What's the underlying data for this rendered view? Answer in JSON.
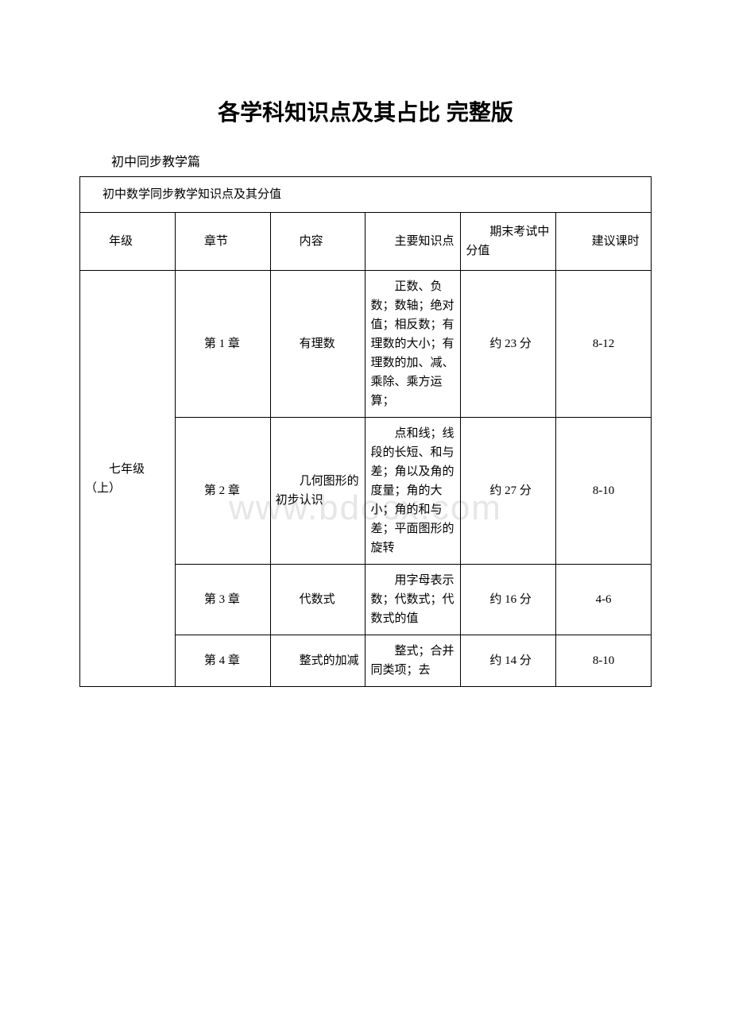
{
  "title": "各学科知识点及其占比 完整版",
  "section_label": "初中同步教学篇",
  "table_caption": "初中数学同步教学知识点及其分值",
  "watermark": "www.bdocx.com",
  "columns": {
    "grade": "年级",
    "chapter": "章节",
    "content": "内容",
    "points": "主要知识点",
    "score": "期末考试中分值",
    "hours": "建议课时"
  },
  "grade_label": "七年级（上）",
  "rows": [
    {
      "chapter": "第 1 章",
      "content": "有理数",
      "points": "正数、负数；数轴；绝对值；相反数；有理数的大小；有理数的加、减、乘除、乘方运算；",
      "score": "约 23 分",
      "hours": "8-12"
    },
    {
      "chapter": "第 2 章",
      "content": "几何图形的初步认识",
      "points": "点和线；线段的长短、和与差；角以及角的度量；角的大小；角的和与差；平面图形的旋转",
      "score": "约 27 分",
      "hours": "8-10"
    },
    {
      "chapter": "第 3 章",
      "content": "代数式",
      "points": "用字母表示数；代数式；代数式的值",
      "score": "约 16 分",
      "hours": "4-6"
    },
    {
      "chapter": "第 4 章",
      "content": "整式的加减",
      "points": "整式；合并同类项；去",
      "score": "约 14 分",
      "hours": "8-10"
    }
  ],
  "styles": {
    "title_fontsize": 28,
    "body_fontsize": 15,
    "border_color": "#000000",
    "background_color": "#ffffff",
    "watermark_color": "#e6e6e6",
    "text_color": "#000000"
  }
}
